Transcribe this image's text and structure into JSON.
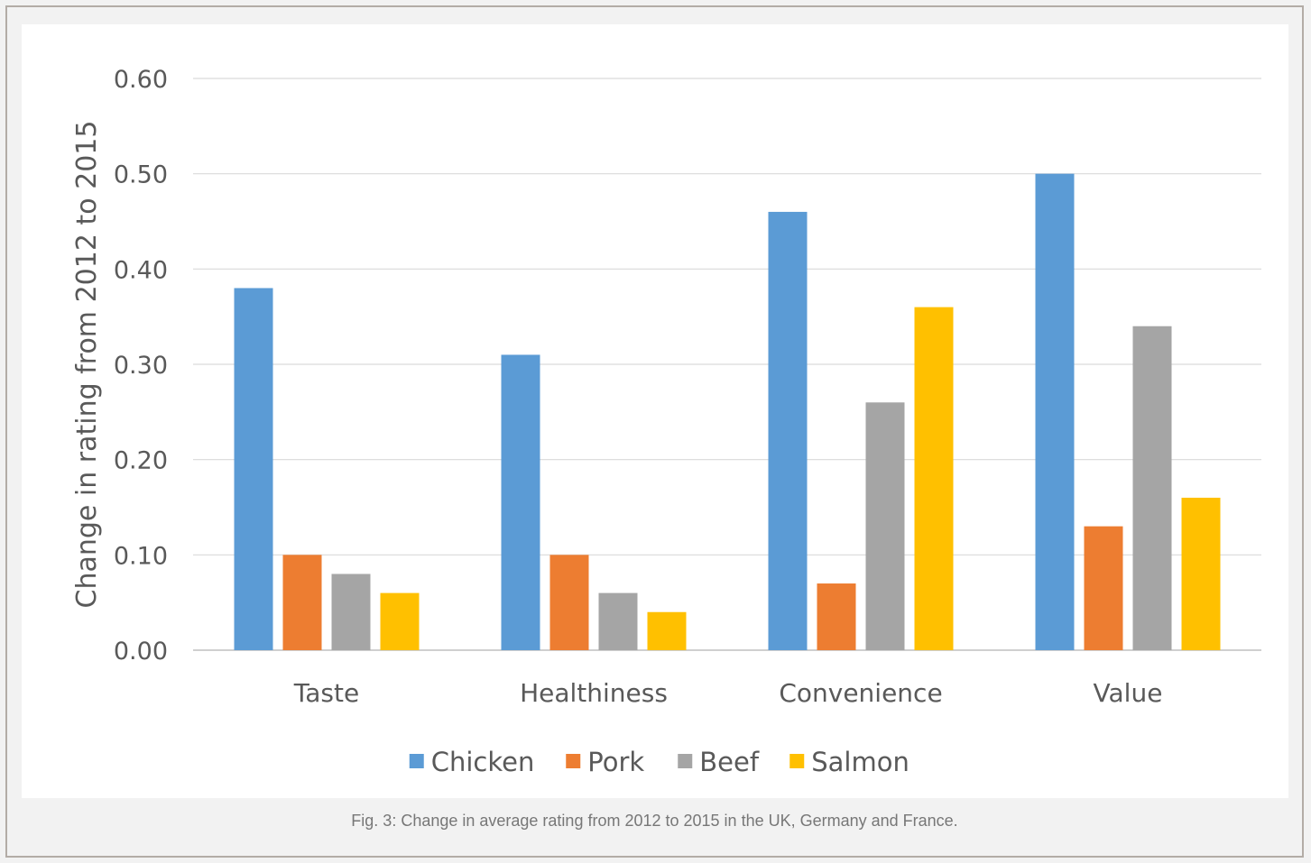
{
  "caption": "Fig. 3: Change in average rating from 2012 to 2015 in the UK, Germany and France.",
  "chart_data": {
    "type": "bar",
    "title": "",
    "xlabel": "",
    "ylabel": "Change in rating from 2012 to 2015",
    "ylim": [
      0,
      0.6
    ],
    "yticks": [
      "0.00",
      "0.10",
      "0.20",
      "0.30",
      "0.40",
      "0.50",
      "0.60"
    ],
    "grid": true,
    "legend_position": "bottom",
    "categories": [
      "Taste",
      "Healthiness",
      "Convenience",
      "Value"
    ],
    "series": [
      {
        "name": "Chicken",
        "color": "#5b9bd5",
        "values": [
          0.38,
          0.31,
          0.46,
          0.5
        ]
      },
      {
        "name": "Pork",
        "color": "#ed7d31",
        "values": [
          0.1,
          0.1,
          0.07,
          0.13
        ]
      },
      {
        "name": "Beef",
        "color": "#a5a5a5",
        "values": [
          0.08,
          0.06,
          0.26,
          0.34
        ]
      },
      {
        "name": "Salmon",
        "color": "#ffc000",
        "values": [
          0.06,
          0.04,
          0.36,
          0.16
        ]
      }
    ]
  }
}
